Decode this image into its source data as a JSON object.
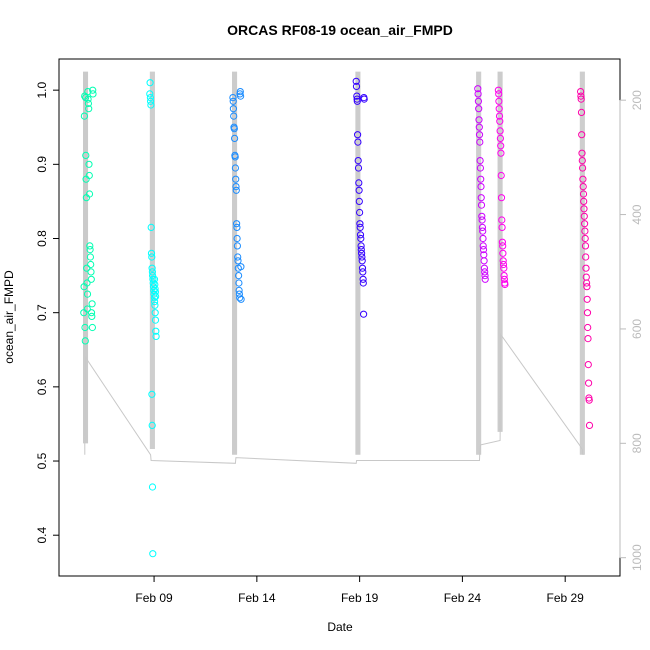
{
  "chart_data": {
    "type": "scatter",
    "title": "ORCAS RF08-19 ocean_air_FMPD",
    "xlabel": "Date",
    "ylabel": "ocean_air_FMPD",
    "xlim": [
      "2016-02-04T09:00",
      "2016-03-02T16:00"
    ],
    "ylim": [
      0.345,
      1.042
    ],
    "x_ticks": [
      {
        "date": "2016-02-09",
        "label": "Feb 09"
      },
      {
        "date": "2016-02-14",
        "label": "Feb 14"
      },
      {
        "date": "2016-02-19",
        "label": "Feb 19"
      },
      {
        "date": "2016-02-24",
        "label": "Feb 24"
      },
      {
        "date": "2016-02-29",
        "label": "Feb 29"
      }
    ],
    "y_ticks": [
      0.4,
      0.5,
      0.6,
      0.7,
      0.8,
      0.9,
      1.0
    ],
    "y_tick_labels": [
      "0.4",
      "0.5",
      "0.6",
      "0.7",
      "0.8",
      "0.9",
      "1.0"
    ],
    "y2_axis": {
      "label": "",
      "lim": [
        1032,
        128
      ],
      "ticks": [
        200,
        400,
        600,
        800,
        1000
      ],
      "tick_labels": [
        "200",
        "400",
        "600",
        "800",
        "1000"
      ],
      "color": "#bbbbbb"
    },
    "grid": false,
    "legend": "none",
    "marker": "open-circle",
    "altitude_trace": {
      "color": "#c8c8c8",
      "points": [
        [
          "2016-02-05T15:00",
          760
        ],
        [
          "2016-02-05T15:05",
          820
        ],
        [
          "2016-02-05T15:10",
          690
        ],
        [
          "2016-02-05T16:00",
          650
        ],
        [
          "2016-02-08T20:00",
          820
        ],
        [
          "2016-02-08T20:30",
          830
        ],
        [
          "2016-02-12T23:00",
          835
        ],
        [
          "2016-02-12T23:30",
          825
        ],
        [
          "2016-02-18T20:00",
          835
        ],
        [
          "2016-02-18T20:30",
          830
        ],
        [
          "2016-02-24T20:00",
          830
        ],
        [
          "2016-02-24T20:30",
          803
        ],
        [
          "2016-02-25T20:00",
          795
        ],
        [
          "2016-02-25T21:00",
          610
        ],
        [
          "2016-02-29T20:00",
          810
        ],
        [
          "2016-02-29T21:00",
          820
        ]
      ]
    },
    "flight_sweeps": [
      {
        "date": "2016-02-05T16:00",
        "alt_min": 150,
        "alt_max": 800
      },
      {
        "date": "2016-02-08T22:00",
        "alt_min": 150,
        "alt_max": 810
      },
      {
        "date": "2016-02-12T22:00",
        "alt_min": 150,
        "alt_max": 820
      },
      {
        "date": "2016-02-18T22:00",
        "alt_min": 150,
        "alt_max": 820
      },
      {
        "date": "2016-02-24T19:00",
        "alt_min": 150,
        "alt_max": 820
      },
      {
        "date": "2016-02-25T20:00",
        "alt_min": 150,
        "alt_max": 780
      },
      {
        "date": "2016-02-29T20:00",
        "alt_min": 150,
        "alt_max": 820
      }
    ],
    "series": [
      {
        "color": "#00ffb2",
        "points": [
          [
            "2016-02-05T14:00",
            0.7
          ],
          [
            "2016-02-05T14:20",
            0.735
          ],
          [
            "2016-02-05T14:40",
            0.965
          ],
          [
            "2016-02-05T15:00",
            0.992
          ],
          [
            "2016-02-05T15:20",
            0.68
          ],
          [
            "2016-02-05T15:40",
            0.662
          ],
          [
            "2016-02-05T16:00",
            0.99
          ],
          [
            "2016-02-05T16:20",
            0.912
          ],
          [
            "2016-02-05T16:40",
            0.88
          ],
          [
            "2016-02-05T17:00",
            0.855
          ],
          [
            "2016-02-05T17:20",
            0.76
          ],
          [
            "2016-02-05T17:40",
            0.74
          ],
          [
            "2016-02-05T18:00",
            0.705
          ],
          [
            "2016-02-05T18:20",
            0.725
          ],
          [
            "2016-02-05T18:40",
            0.998
          ],
          [
            "2016-02-05T19:00",
            0.988
          ],
          [
            "2016-02-05T19:20",
            0.982
          ],
          [
            "2016-02-05T19:40",
            0.975
          ],
          [
            "2016-02-05T20:00",
            0.9
          ],
          [
            "2016-02-05T20:20",
            0.885
          ],
          [
            "2016-02-05T20:40",
            0.86
          ],
          [
            "2016-02-05T21:00",
            0.79
          ],
          [
            "2016-02-05T21:20",
            0.785
          ],
          [
            "2016-02-05T21:40",
            0.775
          ],
          [
            "2016-02-05T22:00",
            0.765
          ],
          [
            "2016-02-05T22:20",
            0.755
          ],
          [
            "2016-02-05T22:40",
            0.745
          ],
          [
            "2016-02-05T23:00",
            0.7
          ],
          [
            "2016-02-05T23:20",
            0.695
          ],
          [
            "2016-02-05T23:40",
            0.712
          ],
          [
            "2016-02-06T00:00",
            0.68
          ],
          [
            "2016-02-06T00:20",
            1.0
          ],
          [
            "2016-02-06T00:40",
            0.995
          ]
        ]
      },
      {
        "color": "#00ffff",
        "points": [
          [
            "2016-02-08T19:00",
            0.995
          ],
          [
            "2016-02-08T19:20",
            1.01
          ],
          [
            "2016-02-08T19:40",
            0.99
          ],
          [
            "2016-02-08T20:00",
            0.985
          ],
          [
            "2016-02-08T20:20",
            0.98
          ],
          [
            "2016-02-08T20:40",
            0.815
          ],
          [
            "2016-02-08T21:00",
            0.78
          ],
          [
            "2016-02-08T21:20",
            0.775
          ],
          [
            "2016-02-08T21:40",
            0.76
          ],
          [
            "2016-02-08T22:00",
            0.755
          ],
          [
            "2016-02-08T22:20",
            0.75
          ],
          [
            "2016-02-08T22:40",
            0.745
          ],
          [
            "2016-02-08T23:00",
            0.74
          ],
          [
            "2016-02-08T23:20",
            0.735
          ],
          [
            "2016-02-08T23:40",
            0.73
          ],
          [
            "2016-02-09T00:00",
            0.725
          ],
          [
            "2016-02-09T00:20",
            0.72
          ],
          [
            "2016-02-09T00:40",
            0.715
          ],
          [
            "2016-02-09T01:00",
            0.71
          ],
          [
            "2016-02-09T01:20",
            0.7
          ],
          [
            "2016-02-09T01:40",
            0.69
          ],
          [
            "2016-02-09T02:00",
            0.675
          ],
          [
            "2016-02-09T02:20",
            0.668
          ],
          [
            "2016-02-08T21:30",
            0.59
          ],
          [
            "2016-02-08T21:50",
            0.548
          ],
          [
            "2016-02-08T22:10",
            0.465
          ],
          [
            "2016-02-08T22:30",
            0.375
          ],
          [
            "2016-02-09T00:30",
            0.745
          ],
          [
            "2016-02-09T00:50",
            0.738
          ],
          [
            "2016-02-09T01:10",
            0.732
          ],
          [
            "2016-02-09T01:30",
            0.728
          ],
          [
            "2016-02-09T01:50",
            0.722
          ]
        ]
      },
      {
        "color": "#1a8cff",
        "points": [
          [
            "2016-02-12T20:00",
            0.99
          ],
          [
            "2016-02-12T20:20",
            0.985
          ],
          [
            "2016-02-12T20:40",
            0.975
          ],
          [
            "2016-02-12T21:00",
            0.965
          ],
          [
            "2016-02-12T21:20",
            0.95
          ],
          [
            "2016-02-12T21:40",
            0.948
          ],
          [
            "2016-02-12T22:00",
            0.935
          ],
          [
            "2016-02-12T22:20",
            0.912
          ],
          [
            "2016-02-12T22:40",
            0.91
          ],
          [
            "2016-02-12T23:00",
            0.895
          ],
          [
            "2016-02-12T23:20",
            0.88
          ],
          [
            "2016-02-12T23:40",
            0.87
          ],
          [
            "2016-02-13T00:00",
            0.865
          ],
          [
            "2016-02-13T00:20",
            0.82
          ],
          [
            "2016-02-13T00:40",
            0.815
          ],
          [
            "2016-02-13T01:00",
            0.8
          ],
          [
            "2016-02-13T01:20",
            0.79
          ],
          [
            "2016-02-13T01:40",
            0.775
          ],
          [
            "2016-02-13T02:00",
            0.77
          ],
          [
            "2016-02-13T02:20",
            0.76
          ],
          [
            "2016-02-13T02:40",
            0.75
          ],
          [
            "2016-02-13T03:00",
            0.74
          ],
          [
            "2016-02-13T03:20",
            0.73
          ],
          [
            "2016-02-13T03:40",
            0.725
          ],
          [
            "2016-02-13T04:00",
            0.72
          ],
          [
            "2016-02-13T04:20",
            0.995
          ],
          [
            "2016-02-13T04:40",
            0.998
          ],
          [
            "2016-02-13T05:00",
            0.992
          ],
          [
            "2016-02-13T05:20",
            0.762
          ],
          [
            "2016-02-13T05:40",
            0.718
          ]
        ]
      },
      {
        "color": "#3300ff",
        "points": [
          [
            "2016-02-18T20:00",
            1.012
          ],
          [
            "2016-02-18T20:20",
            1.005
          ],
          [
            "2016-02-18T20:40",
            0.992
          ],
          [
            "2016-02-18T21:00",
            0.988
          ],
          [
            "2016-02-18T21:20",
            0.985
          ],
          [
            "2016-02-18T21:40",
            0.94
          ],
          [
            "2016-02-18T22:00",
            0.93
          ],
          [
            "2016-02-18T22:20",
            0.905
          ],
          [
            "2016-02-18T22:40",
            0.895
          ],
          [
            "2016-02-18T23:00",
            0.875
          ],
          [
            "2016-02-18T23:20",
            0.865
          ],
          [
            "2016-02-18T23:40",
            0.85
          ],
          [
            "2016-02-19T00:00",
            0.835
          ],
          [
            "2016-02-19T00:20",
            0.82
          ],
          [
            "2016-02-19T00:40",
            0.815
          ],
          [
            "2016-02-19T01:00",
            0.805
          ],
          [
            "2016-02-19T01:20",
            0.8
          ],
          [
            "2016-02-19T01:40",
            0.79
          ],
          [
            "2016-02-19T02:00",
            0.785
          ],
          [
            "2016-02-19T02:20",
            0.78
          ],
          [
            "2016-02-19T02:40",
            0.775
          ],
          [
            "2016-02-19T03:00",
            0.77
          ],
          [
            "2016-02-19T03:20",
            0.76
          ],
          [
            "2016-02-19T03:40",
            0.755
          ],
          [
            "2016-02-19T04:00",
            0.745
          ],
          [
            "2016-02-19T04:20",
            0.74
          ],
          [
            "2016-02-19T04:40",
            0.698
          ],
          [
            "2016-02-19T05:00",
            0.99
          ],
          [
            "2016-02-19T05:20",
            0.988
          ]
        ]
      },
      {
        "color": "#cc00ff",
        "points": [
          [
            "2016-02-24T18:00",
            1.002
          ],
          [
            "2016-02-24T18:20",
            0.995
          ],
          [
            "2016-02-24T18:40",
            0.985
          ],
          [
            "2016-02-24T19:00",
            0.975
          ],
          [
            "2016-02-24T19:20",
            0.96
          ],
          [
            "2016-02-24T19:40",
            0.95
          ],
          [
            "2016-02-24T20:00",
            0.94
          ],
          [
            "2016-02-24T20:20",
            0.93
          ],
          [
            "2016-02-24T20:40",
            0.905
          ],
          [
            "2016-02-24T21:00",
            0.895
          ],
          [
            "2016-02-24T21:20",
            0.88
          ],
          [
            "2016-02-24T21:40",
            0.87
          ],
          [
            "2016-02-24T22:00",
            0.855
          ],
          [
            "2016-02-24T22:20",
            0.845
          ],
          [
            "2016-02-24T22:40",
            0.83
          ],
          [
            "2016-02-24T23:00",
            0.825
          ],
          [
            "2016-02-24T23:20",
            0.815
          ],
          [
            "2016-02-24T23:40",
            0.81
          ],
          [
            "2016-02-25T00:00",
            0.8
          ],
          [
            "2016-02-25T00:20",
            0.79
          ],
          [
            "2016-02-25T00:40",
            0.785
          ],
          [
            "2016-02-25T01:00",
            0.778
          ],
          [
            "2016-02-25T01:20",
            0.77
          ],
          [
            "2016-02-25T01:40",
            0.76
          ],
          [
            "2016-02-25T02:00",
            0.755
          ],
          [
            "2016-02-25T02:20",
            0.75
          ],
          [
            "2016-02-25T02:40",
            0.745
          ]
        ]
      },
      {
        "color": "#ff00ee",
        "points": [
          [
            "2016-02-25T18:00",
            1.0
          ],
          [
            "2016-02-25T18:20",
            0.995
          ],
          [
            "2016-02-25T18:40",
            0.985
          ],
          [
            "2016-02-25T19:00",
            0.975
          ],
          [
            "2016-02-25T19:20",
            0.965
          ],
          [
            "2016-02-25T19:40",
            0.958
          ],
          [
            "2016-02-25T20:00",
            0.945
          ],
          [
            "2016-02-25T20:20",
            0.935
          ],
          [
            "2016-02-25T20:40",
            0.925
          ],
          [
            "2016-02-25T21:00",
            0.915
          ],
          [
            "2016-02-25T21:20",
            0.885
          ],
          [
            "2016-02-25T21:40",
            0.855
          ],
          [
            "2016-02-25T22:00",
            0.825
          ],
          [
            "2016-02-25T22:20",
            0.815
          ],
          [
            "2016-02-25T22:40",
            0.795
          ],
          [
            "2016-02-25T23:00",
            0.79
          ],
          [
            "2016-02-25T23:20",
            0.78
          ],
          [
            "2016-02-25T23:40",
            0.77
          ],
          [
            "2016-02-26T00:00",
            0.765
          ],
          [
            "2016-02-26T00:20",
            0.76
          ],
          [
            "2016-02-26T00:40",
            0.75
          ],
          [
            "2016-02-26T01:00",
            0.745
          ],
          [
            "2016-02-26T01:20",
            0.74
          ],
          [
            "2016-02-26T01:40",
            0.738
          ]
        ]
      },
      {
        "color": "#ff00aa",
        "points": [
          [
            "2016-02-29T18:00",
            0.998
          ],
          [
            "2016-02-29T18:20",
            0.992
          ],
          [
            "2016-02-29T18:40",
            0.988
          ],
          [
            "2016-02-29T19:00",
            0.97
          ],
          [
            "2016-02-29T19:20",
            0.94
          ],
          [
            "2016-02-29T19:40",
            0.915
          ],
          [
            "2016-02-29T20:00",
            0.905
          ],
          [
            "2016-02-29T20:20",
            0.895
          ],
          [
            "2016-02-29T20:40",
            0.88
          ],
          [
            "2016-02-29T21:00",
            0.87
          ],
          [
            "2016-02-29T21:20",
            0.86
          ],
          [
            "2016-02-29T21:40",
            0.85
          ],
          [
            "2016-02-29T22:00",
            0.84
          ],
          [
            "2016-02-29T22:20",
            0.83
          ],
          [
            "2016-02-29T22:40",
            0.82
          ],
          [
            "2016-02-29T23:00",
            0.81
          ],
          [
            "2016-02-29T23:20",
            0.8
          ],
          [
            "2016-02-29T23:40",
            0.79
          ],
          [
            "2016-03-01T00:00",
            0.775
          ],
          [
            "2016-03-01T00:20",
            0.76
          ],
          [
            "2016-03-01T00:40",
            0.748
          ],
          [
            "2016-03-01T01:00",
            0.74
          ],
          [
            "2016-03-01T01:20",
            0.735
          ],
          [
            "2016-03-01T01:40",
            0.718
          ],
          [
            "2016-03-01T02:00",
            0.7
          ],
          [
            "2016-03-01T02:20",
            0.68
          ],
          [
            "2016-03-01T02:40",
            0.665
          ],
          [
            "2016-03-01T03:00",
            0.63
          ],
          [
            "2016-03-01T03:20",
            0.605
          ],
          [
            "2016-03-01T03:40",
            0.585
          ],
          [
            "2016-03-01T04:00",
            0.582
          ],
          [
            "2016-03-01T04:20",
            0.548
          ]
        ]
      }
    ]
  }
}
